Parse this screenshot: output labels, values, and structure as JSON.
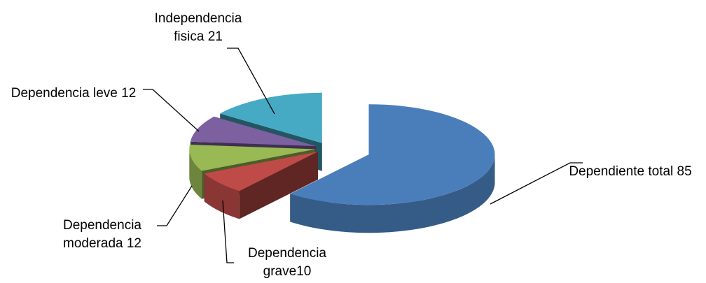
{
  "chart_data": {
    "type": "pie3d",
    "values": [
      85,
      10,
      12,
      12,
      21
    ],
    "value_labels": [
      "Dependiente total 85",
      "Dependencia grave10",
      "Dependencia moderada 12",
      "Dependencia leve 12",
      "Independencia fisica 21"
    ],
    "colors": [
      "#4a7ebb",
      "#be4b48",
      "#98b954",
      "#7d60a0",
      "#46aac5"
    ]
  }
}
